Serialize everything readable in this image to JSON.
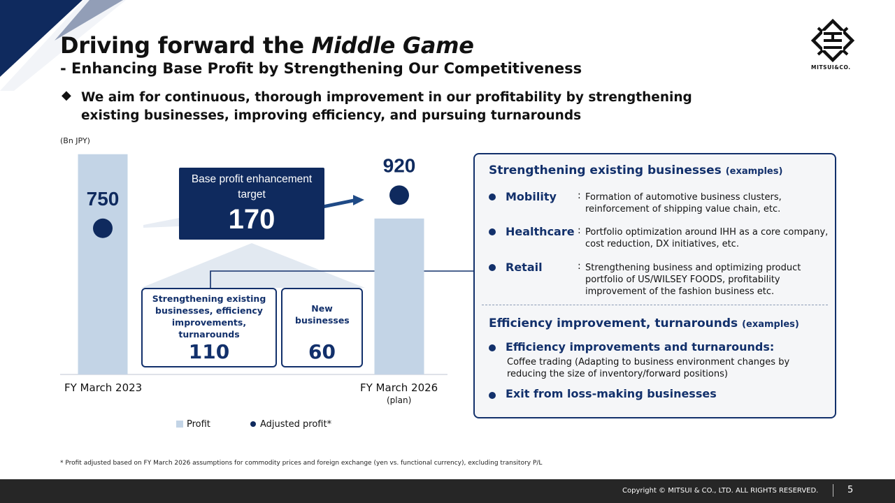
{
  "title": {
    "main": "Driving forward the ",
    "emphasis": "Middle Game"
  },
  "subtitle": "- Enhancing Base Profit by Strengthening Our Competitiveness",
  "logo_text": "MITSUI&CO.",
  "lead": "We aim for continuous, thorough improvement in our profitability by strengthening existing businesses, improving efficiency, and pursuing turnarounds",
  "chart_data": {
    "type": "bar",
    "unit": "(Bn JPY)",
    "categories": [
      "FY March 2023",
      "FY March 2026"
    ],
    "category_sub": [
      "",
      "(plan)"
    ],
    "series": [
      {
        "name": "Profit",
        "values": [
          1130,
          800
        ],
        "color": "#c3d4e6"
      },
      {
        "name": "Adjusted profit*",
        "values": [
          750,
          920
        ],
        "color": "#0f2a5e"
      }
    ],
    "value_labels": [
      "750",
      "920"
    ],
    "ylim": [
      0,
      1300
    ],
    "legend_position": "bottom",
    "callout": {
      "label": "Base profit enhancement target",
      "value": "170",
      "components": [
        {
          "label": "Strengthening existing businesses, efficiency improvements, turnarounds",
          "value": "110"
        },
        {
          "label": "New businesses",
          "value": "60"
        }
      ]
    }
  },
  "panel": {
    "strengthening": {
      "heading": "Strengthening existing businesses",
      "tag": "(examples)",
      "items": [
        {
          "name": "Mobility",
          "colon": ":",
          "desc": "Formation of automotive business clusters, reinforcement of shipping value chain, etc."
        },
        {
          "name": "Healthcare",
          "colon": ":",
          "desc": "Portfolio optimization around IHH as a core company, cost reduction, DX initiatives, etc."
        },
        {
          "name": "Retail",
          "colon": ":",
          "desc": "Strengthening business and optimizing product portfolio of US/WILSEY FOODS, profitability improvement of the fashion business etc."
        }
      ]
    },
    "efficiency": {
      "heading": "Efficiency improvement, turnarounds",
      "tag": "(examples)",
      "item1": "Efficiency improvements and turnarounds:",
      "item1_desc": "Coffee trading (Adapting to business environment changes by reducing the size of inventory/forward positions)",
      "item2": "Exit from loss-making businesses"
    }
  },
  "footnote": "* Profit adjusted based on FY March 2026 assumptions for commodity prices and foreign exchange (yen vs. functional currency), excluding transitory P/L",
  "footer": {
    "copyright": "Copyright © MITSUI & CO., LTD. ALL RIGHTS RESERVED.",
    "page": "5"
  },
  "colors": {
    "navy": "#0f2a5e",
    "bar": "#c3d4e6",
    "accent_border": "#12306b"
  }
}
